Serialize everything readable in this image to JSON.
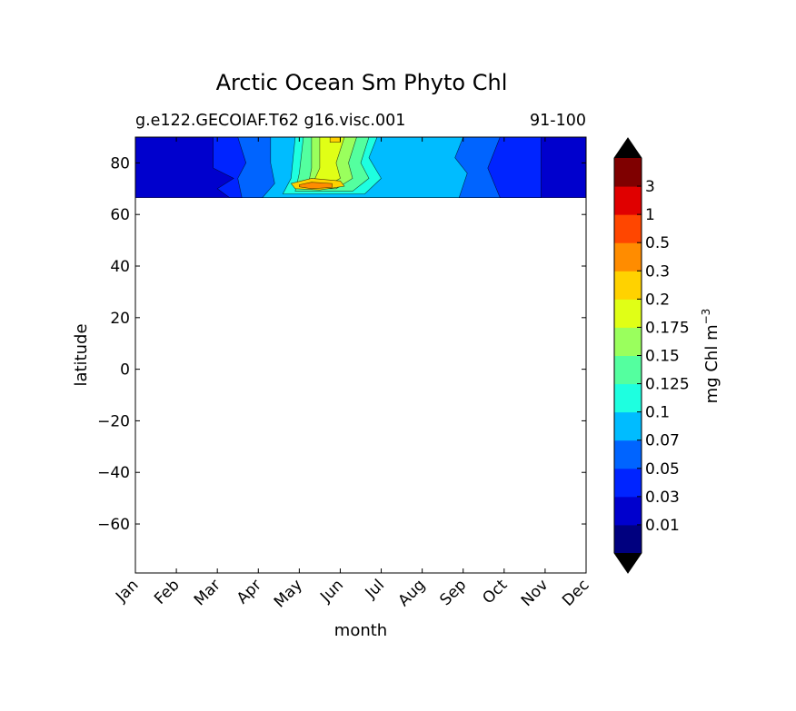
{
  "chart_data": {
    "type": "heatmap",
    "title": "Arctic Ocean Sm Phyto Chl",
    "subtitle_left": "g.e122.GECOIAF.T62 g16.visc.001",
    "subtitle_right": "91-100",
    "xlabel": "month",
    "ylabel": "latitude",
    "x_tick_labels": [
      "Jan",
      "Feb",
      "Mar",
      "Apr",
      "May",
      "Jun",
      "Jul",
      "Aug",
      "Sep",
      "Oct",
      "Nov",
      "Dec"
    ],
    "x_range": [
      1,
      12
    ],
    "y_range": [
      -79,
      90
    ],
    "y_ticks": [
      80,
      60,
      40,
      20,
      0,
      -20,
      -40,
      -60
    ],
    "y_tick_labels": [
      "80",
      "60",
      "40",
      "20",
      "0",
      "−20",
      "−40",
      "−60"
    ],
    "data_lat_range": [
      66.5,
      90
    ],
    "colorbar": {
      "label": "mg Chl m",
      "label_sup": "−3",
      "levels": [
        "0.01",
        "0.03",
        "0.05",
        "0.07",
        "0.1",
        "0.125",
        "0.15",
        "0.175",
        "0.2",
        "0.3",
        "0.5",
        "1",
        "3"
      ],
      "colors": [
        "#00007f",
        "#0000cd",
        "#0024ff",
        "#0064ff",
        "#00bcff",
        "#1effe0",
        "#54ff9f",
        "#9aff5d",
        "#e0ff16",
        "#ffd200",
        "#ff8c00",
        "#ff4600",
        "#e00000",
        "#7f0000"
      ],
      "extend": "both"
    },
    "contour_regions": [
      {
        "level_index": 1,
        "polygon": [
          [
            1,
            90
          ],
          [
            12,
            90
          ],
          [
            12,
            66.5
          ],
          [
            1,
            66.5
          ]
        ]
      },
      {
        "level_index": 2,
        "polygon": [
          [
            2.9,
            90
          ],
          [
            10.9,
            90
          ],
          [
            10.9,
            66.5
          ],
          [
            3.3,
            66.5
          ],
          [
            3.0,
            70
          ],
          [
            3.4,
            74
          ],
          [
            2.9,
            78
          ]
        ]
      },
      {
        "level_index": 3,
        "polygon": [
          [
            3.5,
            90
          ],
          [
            9.9,
            90
          ],
          [
            9.6,
            78
          ],
          [
            9.9,
            66.5
          ],
          [
            3.6,
            66.5
          ],
          [
            3.5,
            74
          ],
          [
            3.7,
            80
          ]
        ]
      },
      {
        "level_index": 4,
        "polygon": [
          [
            4.3,
            90
          ],
          [
            9.0,
            90
          ],
          [
            8.8,
            82
          ],
          [
            9.1,
            76
          ],
          [
            8.9,
            66.5
          ],
          [
            4.1,
            66.5
          ],
          [
            4.4,
            72
          ],
          [
            4.3,
            80
          ]
        ]
      },
      {
        "level_index": 5,
        "polygon": [
          [
            4.9,
            90
          ],
          [
            6.9,
            90
          ],
          [
            6.7,
            82
          ],
          [
            7.0,
            74
          ],
          [
            6.6,
            68
          ],
          [
            4.6,
            68
          ],
          [
            4.8,
            74
          ]
        ]
      },
      {
        "level_index": 6,
        "polygon": [
          [
            5.1,
            90
          ],
          [
            6.7,
            90
          ],
          [
            6.5,
            80
          ],
          [
            6.7,
            74
          ],
          [
            6.3,
            69
          ],
          [
            4.9,
            69
          ],
          [
            5.0,
            76
          ]
        ]
      },
      {
        "level_index": 7,
        "polygon": [
          [
            5.3,
            90
          ],
          [
            6.4,
            90
          ],
          [
            6.2,
            80
          ],
          [
            6.3,
            74
          ],
          [
            5.9,
            70
          ],
          [
            5.2,
            70
          ],
          [
            5.3,
            78
          ]
        ]
      },
      {
        "level_index": 8,
        "polygon": [
          [
            5.5,
            90
          ],
          [
            6.1,
            90
          ],
          [
            5.9,
            80
          ],
          [
            6.0,
            74
          ],
          [
            5.6,
            70.5
          ],
          [
            5.3,
            71
          ],
          [
            5.5,
            78
          ]
        ]
      },
      {
        "level_index": 9,
        "polygon": [
          [
            5.75,
            88
          ],
          [
            6.0,
            88
          ],
          [
            6.0,
            90
          ],
          [
            5.75,
            90
          ]
        ]
      },
      {
        "level_index": 9,
        "polygon": [
          [
            4.8,
            72
          ],
          [
            5.3,
            74
          ],
          [
            6.0,
            73
          ],
          [
            6.1,
            71
          ],
          [
            5.5,
            69.5
          ],
          [
            4.9,
            70
          ]
        ]
      },
      {
        "level_index": 10,
        "polygon": [
          [
            5.0,
            71.5
          ],
          [
            5.3,
            72.5
          ],
          [
            5.8,
            72
          ],
          [
            5.8,
            70.5
          ],
          [
            5.3,
            70
          ],
          [
            5.0,
            70.7
          ]
        ]
      }
    ]
  }
}
